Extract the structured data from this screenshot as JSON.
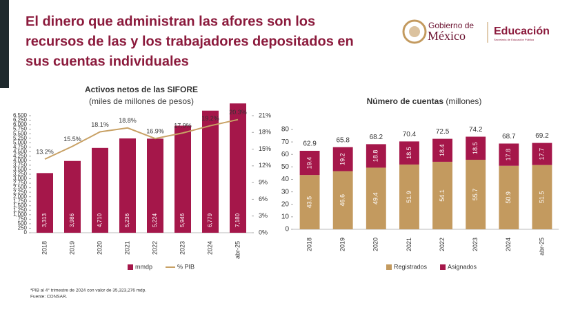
{
  "header": {
    "title_lines": [
      "El dinero que administran las afores son los",
      "recursos de las y los trabajadores depositados en",
      "sus cuentas individuales"
    ],
    "logo_gobierno": "Gobierno de",
    "logo_mexico": "México",
    "logo_educacion": "Educación",
    "logo_sub": "Secretaría de Educación Pública"
  },
  "chart_data": [
    {
      "type": "bar",
      "title": "Activos netos de las SIFORE",
      "subtitle": "(miles de millones de pesos)",
      "categories": [
        "2018",
        "2019",
        "2020",
        "2021",
        "2022",
        "2023",
        "2024",
        "abr-25"
      ],
      "series": [
        {
          "name": "mmdp",
          "color": "#a5174a",
          "values": [
            3313,
            3986,
            4710,
            5236,
            5224,
            5946,
            6779,
            7180
          ],
          "value_labels": [
            "3,313",
            "3,986",
            "4,710",
            "5,236",
            "5,224",
            "5,946",
            "6,779",
            "7,180"
          ]
        },
        {
          "name": "% PIB",
          "color": "#c8a165",
          "axis": "y2",
          "values": [
            13.2,
            15.5,
            18.1,
            18.8,
            16.9,
            17.9,
            19.2,
            20.3
          ],
          "value_labels": [
            "13.2%",
            "15.5%",
            "18.1%",
            "18.8%",
            "16.9%",
            "17.9%",
            "19.2%",
            "20.3%"
          ]
        }
      ],
      "ylim": [
        0,
        6500
      ],
      "yticks": [
        0,
        250,
        500,
        750,
        {
          "value": 1000,
          "label": "1,000"
        },
        {
          "value": 1250,
          "label": "1,250"
        },
        {
          "value": 1500,
          "label": "1,500"
        },
        {
          "value": 1750,
          "label": "1,750"
        },
        {
          "value": 2000,
          "label": "2,000"
        },
        {
          "value": 2250,
          "label": "2,250"
        },
        {
          "value": 2500,
          "label": "2,500"
        },
        {
          "value": 2750,
          "label": "2,750"
        },
        {
          "value": 3000,
          "label": "3,000"
        },
        {
          "value": 3250,
          "label": "3,250"
        },
        {
          "value": 3500,
          "label": "3,500"
        },
        {
          "value": 3750,
          "label": "3,750"
        },
        {
          "value": 4000,
          "label": "4,000"
        },
        {
          "value": 4250,
          "label": "4,250"
        },
        {
          "value": 4500,
          "label": "4,500"
        },
        {
          "value": 4750,
          "label": "4,750"
        },
        {
          "value": 5000,
          "label": "5,000"
        },
        {
          "value": 5250,
          "label": "5,250"
        },
        {
          "value": 5500,
          "label": "5,500"
        },
        {
          "value": 5750,
          "label": "5,750"
        },
        {
          "value": 6000,
          "label": "6,000"
        },
        {
          "value": 6250,
          "label": "6,250"
        },
        {
          "value": 6500,
          "label": "6,500"
        }
      ],
      "y2lim": [
        0,
        21
      ],
      "y2ticks": [
        {
          "value": 0,
          "label": "0%"
        },
        {
          "value": 3,
          "label": "3%"
        },
        {
          "value": 6,
          "label": "6%"
        },
        {
          "value": 9,
          "label": "9%"
        },
        {
          "value": 12,
          "label": "12%"
        },
        {
          "value": 15,
          "label": "15%"
        },
        {
          "value": 18,
          "label": "18%"
        },
        {
          "value": 21,
          "label": "21%"
        }
      ]
    },
    {
      "type": "stacked_bar",
      "title": "Número de cuentas",
      "subtitle": "(millones)",
      "categories": [
        "2018",
        "2019",
        "2020",
        "2021",
        "2022",
        "2023",
        "2024",
        "abr-25"
      ],
      "series": [
        {
          "name": "Registrados",
          "color": "#c39a5f",
          "values": [
            43.5,
            46.6,
            49.4,
            51.9,
            54.1,
            55.7,
            50.9,
            51.5
          ]
        },
        {
          "name": "Asignados",
          "color": "#a5174a",
          "values": [
            19.4,
            19.2,
            18.8,
            18.5,
            18.4,
            18.5,
            17.8,
            17.7
          ]
        }
      ],
      "totals": [
        62.9,
        65.8,
        68.2,
        70.4,
        72.5,
        74.2,
        68.7,
        69.2
      ],
      "ylim": [
        0,
        80
      ],
      "yticks": [
        0,
        10,
        20,
        30,
        40,
        50,
        60,
        70,
        80
      ]
    }
  ],
  "footnotes": [
    "*PIB al 4° trimestre de 2024 con valor de 35,323,276 mdp.",
    "Fuente: CONSAR."
  ]
}
